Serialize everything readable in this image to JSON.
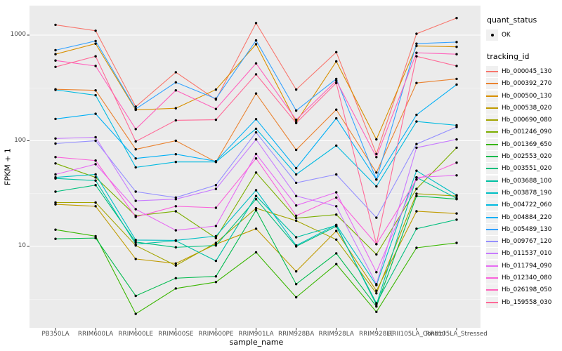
{
  "figure": {
    "panel_bg": "#EBEBEB",
    "grid_major_color": "#FFFFFF",
    "grid_minor_color": "#F7F7F7",
    "point_color": "#000000",
    "tick_color": "#333333",
    "tick_label_color": "#4D4D4D"
  },
  "axes": {
    "x_title": "sample_name",
    "y_title": "FPKM + 1"
  },
  "legend": {
    "quant_status_title": "quant_status",
    "quant_status_ok_label": "OK",
    "tracking_title": "tracking_id"
  },
  "chart_data": {
    "type": "line",
    "title": "",
    "xlabel": "sample_name",
    "ylabel": "FPKM + 1",
    "y_scale": "log10",
    "ylim": [
      1.7,
      1900
    ],
    "y_tick_values": [
      10,
      100,
      1000
    ],
    "y_tick_labels": [
      "10",
      "100",
      "1000"
    ],
    "grid": true,
    "legend_position": "right",
    "categories": [
      "PB350LA",
      "RRIM600LA",
      "RRIM600LE",
      "RRIM600SE",
      "RRIM600PE",
      "RRIM901LA",
      "RRIM928BA",
      "RRIM928LA",
      "RRIM928LE",
      "RRII105LA_Control",
      "RRII105LA_Stressed"
    ],
    "series": [
      {
        "name": "Hb_000045_130",
        "color": "#F8766D",
        "values": [
          1250,
          1100,
          210,
          445,
          245,
          1300,
          305,
          690,
          75,
          1030,
          1450
        ]
      },
      {
        "name": "Hb_000392_270",
        "color": "#EA8331",
        "values": [
          307,
          300,
          83,
          100,
          63,
          280,
          82,
          197,
          50,
          352,
          385
        ]
      },
      {
        "name": "Hb_000500_130",
        "color": "#D89000",
        "values": [
          660,
          830,
          196,
          203,
          305,
          820,
          150,
          563,
          103,
          790,
          775
        ]
      },
      {
        "name": "Hb_000538_020",
        "color": "#C09B00",
        "values": [
          25,
          24,
          7.6,
          6.9,
          10.5,
          14.7,
          5.8,
          14,
          3.8,
          21.5,
          20.5
        ]
      },
      {
        "name": "Hb_000690_080",
        "color": "#A3A500",
        "values": [
          26,
          26,
          10.2,
          6.6,
          10.8,
          23,
          17.5,
          11.6,
          3.6,
          31.5,
          30
        ]
      },
      {
        "name": "Hb_001246_090",
        "color": "#7CAE00",
        "values": [
          61,
          45,
          19.5,
          21.5,
          12,
          50,
          18.5,
          20,
          8.4,
          35,
          86
        ]
      },
      {
        "name": "Hb_001369_650",
        "color": "#39B600",
        "values": [
          14.4,
          12.5,
          2.3,
          4,
          4.6,
          8.8,
          3.3,
          6.8,
          2.4,
          9.7,
          10.8
        ]
      },
      {
        "name": "Hb_002553_020",
        "color": "#00BB4E",
        "values": [
          11.8,
          12,
          3.4,
          5,
          5.2,
          22,
          4.4,
          8.6,
          2.7,
          30,
          28
        ]
      },
      {
        "name": "Hb_003551_020",
        "color": "#00BF7D",
        "values": [
          33,
          38,
          11,
          9.8,
          10.2,
          28,
          10,
          15.5,
          2.9,
          14.7,
          17.9
        ]
      },
      {
        "name": "Hb_003688_100",
        "color": "#00C1A3",
        "values": [
          44,
          42,
          10.5,
          11.3,
          7.3,
          30,
          12.2,
          15.8,
          2.8,
          45,
          28.5
        ]
      },
      {
        "name": "Hb_003878_190",
        "color": "#00BFC4",
        "values": [
          45,
          48,
          11.5,
          11.4,
          12.5,
          34,
          10.2,
          16,
          4.3,
          52,
          30.5
        ]
      },
      {
        "name": "Hb_004722_060",
        "color": "#00BAE0",
        "values": [
          303,
          270,
          56,
          63,
          63,
          130,
          48,
          90,
          37,
          152,
          140
        ]
      },
      {
        "name": "Hb_004884_220",
        "color": "#00B0F6",
        "values": [
          161,
          180,
          68,
          74.5,
          64,
          160,
          55,
          163,
          43,
          176,
          340
        ]
      },
      {
        "name": "Hb_005489_130",
        "color": "#35A2FF",
        "values": [
          720,
          880,
          200,
          357,
          250,
          890,
          193,
          385,
          43,
          830,
          860
        ]
      },
      {
        "name": "Hb_009767_120",
        "color": "#9590FF",
        "values": [
          94,
          100,
          33,
          29,
          38,
          120,
          40,
          48,
          18.7,
          93,
          135
        ]
      },
      {
        "name": "Hb_011537_010",
        "color": "#C77CFF",
        "values": [
          105,
          108,
          27,
          28,
          35,
          103,
          30,
          24,
          4.4,
          86,
          103
        ]
      },
      {
        "name": "Hb_011794_090",
        "color": "#E76BF3",
        "values": [
          48,
          60,
          22.5,
          14.2,
          15.6,
          75,
          24.4,
          32.5,
          5.7,
          45,
          47
        ]
      },
      {
        "name": "Hb_012340_080",
        "color": "#FA62DB",
        "values": [
          70,
          65,
          19,
          24,
          23.2,
          68,
          19.5,
          29,
          10.5,
          43,
          62
        ]
      },
      {
        "name": "Hb_026198_050",
        "color": "#FF62BC",
        "values": [
          575,
          510,
          129,
          300,
          200,
          540,
          158,
          370,
          70,
          680,
          660
        ]
      },
      {
        "name": "Hb_159558_030",
        "color": "#FF6A98",
        "values": [
          500,
          630,
          98.5,
          156,
          158,
          425,
          147,
          352,
          10.5,
          630,
          510
        ]
      }
    ]
  }
}
